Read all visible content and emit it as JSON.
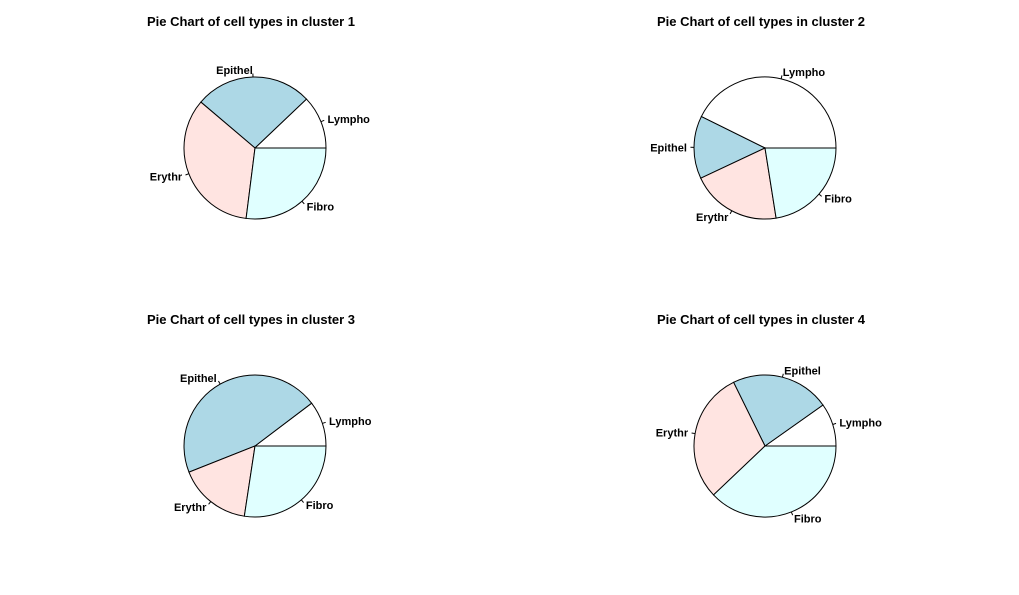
{
  "figure": {
    "background": "#ffffff"
  },
  "chart_data": [
    {
      "type": "pie",
      "title": "Pie Chart of cell types in cluster 1",
      "start_angle_deg": 0,
      "direction": "counterclockwise",
      "slices": [
        {
          "label": "Lympho",
          "value": 12.1,
          "color": "#ffffff"
        },
        {
          "label": "Epithel",
          "value": 26.7,
          "color": "#add8e6"
        },
        {
          "label": "Erythr",
          "value": 34.2,
          "color": "#ffe4e1"
        },
        {
          "label": "Fibro",
          "value": 27.0,
          "color": "#e0ffff"
        }
      ]
    },
    {
      "type": "pie",
      "title": "Pie Chart of cell types in cluster 2",
      "start_angle_deg": 0,
      "direction": "counterclockwise",
      "slices": [
        {
          "label": "Lympho",
          "value": 42.7,
          "color": "#ffffff"
        },
        {
          "label": "Epithel",
          "value": 14.3,
          "color": "#add8e6"
        },
        {
          "label": "Erythr",
          "value": 20.5,
          "color": "#ffe4e1"
        },
        {
          "label": "Fibro",
          "value": 22.5,
          "color": "#e0ffff"
        }
      ]
    },
    {
      "type": "pie",
      "title": "Pie Chart of cell types in cluster 3",
      "start_angle_deg": 0,
      "direction": "counterclockwise",
      "slices": [
        {
          "label": "Lympho",
          "value": 10.3,
          "color": "#ffffff"
        },
        {
          "label": "Epithel",
          "value": 45.7,
          "color": "#add8e6"
        },
        {
          "label": "Erythr",
          "value": 16.6,
          "color": "#ffe4e1"
        },
        {
          "label": "Fibro",
          "value": 27.4,
          "color": "#e0ffff"
        }
      ]
    },
    {
      "type": "pie",
      "title": "Pie Chart of cell types in cluster 4",
      "start_angle_deg": 0,
      "direction": "counterclockwise",
      "slices": [
        {
          "label": "Lympho",
          "value": 9.8,
          "color": "#ffffff"
        },
        {
          "label": "Epithel",
          "value": 22.5,
          "color": "#add8e6"
        },
        {
          "label": "Erythr",
          "value": 29.8,
          "color": "#ffe4e1"
        },
        {
          "label": "Fibro",
          "value": 37.9,
          "color": "#e0ffff"
        }
      ]
    }
  ]
}
